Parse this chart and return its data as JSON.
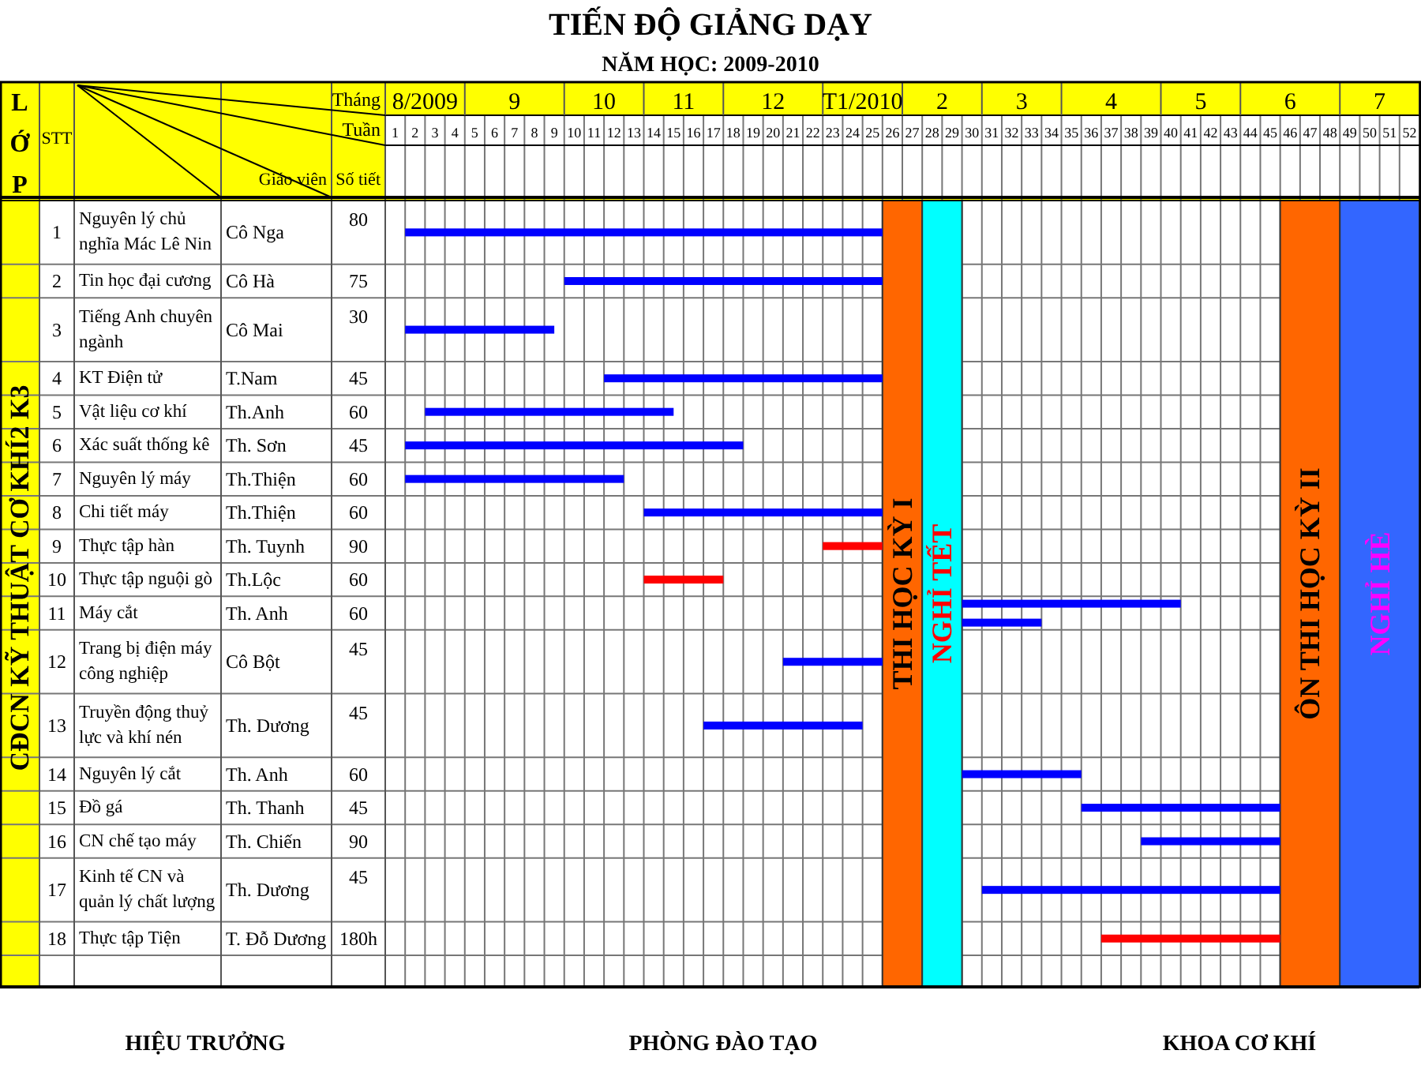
{
  "chart_data": {
    "type": "bar",
    "orientation": "horizontal",
    "title": "TIẾN ĐỘ GIẢNG DẠY",
    "subtitle": "NĂM HỌC: 2009-2010",
    "xlabel": "Tuần",
    "categories": [
      "Nguyên lý chủ nghĩa Mác Lê Nin",
      "Tin học đại cương",
      "Tiếng Anh chuyên ngành",
      "KT Điện tử",
      "Vật liệu cơ khí",
      "Xác suất thống kê",
      "Nguyên lý máy",
      "Chi tiết máy",
      "Thực tập hàn",
      "Thực tập nguội gò",
      "Máy cắt",
      "Trang bị điện máy công nghiệp",
      "Truyền động thuỷ lực và khí nén",
      "Nguyên lý cắt",
      "Đồ gá",
      "CN chế tạo máy",
      "Kinh tế CN và quản lý chất lượng",
      "Thực tập Tiện"
    ],
    "series": [
      {
        "color": "#0000ff",
        "base": [
          1,
          9,
          1,
          11,
          2,
          1,
          1,
          13,
          null,
          null,
          29,
          20,
          16,
          29,
          35,
          38,
          30,
          null
        ],
        "values": [
          24,
          16,
          7.5,
          14,
          12.5,
          17,
          11,
          12,
          null,
          null,
          11,
          5,
          8,
          6,
          10,
          7,
          15,
          null
        ]
      },
      {
        "color": "#ff0000",
        "base": [
          null,
          null,
          null,
          null,
          null,
          null,
          null,
          null,
          22,
          13,
          null,
          null,
          null,
          null,
          null,
          null,
          null,
          36
        ],
        "values": [
          null,
          null,
          null,
          null,
          null,
          null,
          null,
          null,
          3,
          4,
          null,
          null,
          null,
          null,
          null,
          null,
          null,
          9
        ]
      },
      {
        "color": "#0000ff",
        "base": [
          null,
          null,
          null,
          null,
          null,
          null,
          null,
          null,
          null,
          null,
          29,
          null,
          null,
          null,
          null,
          null,
          null,
          null
        ],
        "values": [
          null,
          null,
          null,
          null,
          null,
          null,
          null,
          null,
          null,
          null,
          4,
          null,
          null,
          null,
          null,
          null,
          null,
          null
        ]
      }
    ],
    "xlim": [
      0,
      52
    ],
    "xticks": [
      {
        "value": 0.5,
        "label": "1"
      },
      {
        "value": 1.5,
        "label": "2"
      },
      {
        "value": 2.5,
        "label": "3"
      },
      {
        "value": 3.5,
        "label": "4"
      },
      {
        "value": 4.5,
        "label": "5"
      },
      {
        "value": 5.5,
        "label": "6"
      },
      {
        "value": 6.5,
        "label": "7"
      },
      {
        "value": 7.5,
        "label": "8"
      },
      {
        "value": 8.5,
        "label": "9"
      },
      {
        "value": 9.5,
        "label": "10"
      },
      {
        "value": 10.5,
        "label": "11"
      },
      {
        "value": 11.5,
        "label": "12"
      },
      {
        "value": 12.5,
        "label": "13"
      },
      {
        "value": 13.5,
        "label": "14"
      },
      {
        "value": 14.5,
        "label": "15"
      },
      {
        "value": 15.5,
        "label": "16"
      },
      {
        "value": 16.5,
        "label": "17"
      },
      {
        "value": 17.5,
        "label": "18"
      },
      {
        "value": 18.5,
        "label": "19"
      },
      {
        "value": 19.5,
        "label": "20"
      },
      {
        "value": 20.5,
        "label": "21"
      },
      {
        "value": 21.5,
        "label": "22"
      },
      {
        "value": 22.5,
        "label": "23"
      },
      {
        "value": 23.5,
        "label": "24"
      },
      {
        "value": 24.5,
        "label": "25"
      },
      {
        "value": 25.5,
        "label": "26"
      },
      {
        "value": 26.5,
        "label": "27"
      },
      {
        "value": 27.5,
        "label": "28"
      },
      {
        "value": 28.5,
        "label": "29"
      },
      {
        "value": 29.5,
        "label": "30"
      },
      {
        "value": 30.5,
        "label": "31"
      },
      {
        "value": 31.5,
        "label": "32"
      },
      {
        "value": 32.5,
        "label": "33"
      },
      {
        "value": 33.5,
        "label": "34"
      },
      {
        "value": 34.5,
        "label": "35"
      },
      {
        "value": 35.5,
        "label": "36"
      },
      {
        "value": 36.5,
        "label": "37"
      },
      {
        "value": 37.5,
        "label": "38"
      },
      {
        "value": 38.5,
        "label": "39"
      },
      {
        "value": 39.5,
        "label": "40"
      },
      {
        "value": 40.5,
        "label": "41"
      },
      {
        "value": 41.5,
        "label": "42"
      },
      {
        "value": 42.5,
        "label": "43"
      },
      {
        "value": 43.5,
        "label": "44"
      },
      {
        "value": 44.5,
        "label": "45"
      },
      {
        "value": 45.5,
        "label": "46"
      },
      {
        "value": 46.5,
        "label": "47"
      },
      {
        "value": 47.5,
        "label": "48"
      },
      {
        "value": 48.5,
        "label": "49"
      },
      {
        "value": 49.5,
        "label": "50"
      },
      {
        "value": 50.5,
        "label": "51"
      },
      {
        "value": 51.5,
        "label": "52"
      }
    ],
    "grid": true,
    "bands": [
      {
        "axis": "x",
        "from": 25,
        "to": 27,
        "label": "THI HỌC KỲ I",
        "color": "#ff6600"
      },
      {
        "axis": "x",
        "from": 27,
        "to": 29,
        "label": "NGHỈ TẾT",
        "color": "#00ffff"
      },
      {
        "axis": "x",
        "from": 45,
        "to": 48,
        "label": "ÔN THI HỌC KỲ II",
        "color": "#ff6600"
      },
      {
        "axis": "x",
        "from": 48,
        "to": 52,
        "label": "NGHỈ HÈ",
        "color": "#3366ff"
      }
    ],
    "annotations": [
      "LỚP",
      "STT",
      "Giáo viên",
      "Số tiết",
      "CĐCN KỸ THUẬT CƠ KHÍ2 K3",
      "HIỆU TRƯỞNG",
      "PHÒNG ĐÀO TẠO",
      "KHOA CƠ KHÍ",
      "Tháng",
      "1",
      "Cô Nga",
      "80",
      "2",
      "Cô  Hà",
      "75",
      "3",
      "Cô Mai",
      "30",
      "4",
      "T.Nam",
      "45",
      "5",
      "Th.Anh",
      "60",
      "6",
      "Th. Sơn",
      "45",
      "7",
      "Th.Thiện",
      "60",
      "8",
      "Th.Thiện",
      "60",
      "9",
      "Th. Tuynh",
      "90",
      "10",
      "Th.Lộc",
      "60",
      "11",
      "Th. Anh",
      "60",
      "12",
      "Cô Bột",
      "45",
      "13",
      "Th. Dương",
      "45",
      "14",
      "Th. Anh",
      "60",
      "15",
      "Th. Thanh",
      "45",
      "16",
      "Th. Chiến",
      "90",
      "17",
      "Th. Dương",
      "45",
      "18",
      "T. Đỗ Dương",
      "180h",
      "8/2009",
      "9",
      "10",
      "11",
      "12",
      "T1/2010",
      "2",
      "3",
      "4",
      "5",
      "6",
      "7"
    ]
  }
}
